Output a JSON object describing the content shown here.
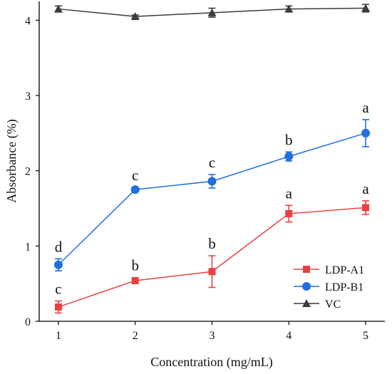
{
  "chart_data": {
    "type": "line",
    "xlabel": "Concentration (mg/mL)",
    "ylabel": "Absorbance (%)",
    "x": [
      1,
      2,
      3,
      4,
      5
    ],
    "xlim": [
      0.75,
      5.25
    ],
    "ylim": [
      0,
      4.25
    ],
    "xticks": [
      1,
      2,
      3,
      4,
      5
    ],
    "yticks": [
      0,
      1,
      2,
      3,
      4
    ],
    "grid": false,
    "legend_position": "bottom-right",
    "series": [
      {
        "name": "LDP-A1",
        "color": "#ea4040",
        "marker": "square",
        "values": [
          0.19,
          0.54,
          0.66,
          1.43,
          1.51
        ],
        "errors": [
          0.08,
          0.04,
          0.21,
          0.11,
          0.09
        ],
        "labels": [
          "c",
          "b",
          "b",
          "a",
          "a"
        ]
      },
      {
        "name": "LDP-B1",
        "color": "#1f6fe0",
        "marker": "circle",
        "values": [
          0.75,
          1.75,
          1.86,
          2.19,
          2.5
        ],
        "errors": [
          0.08,
          0.03,
          0.09,
          0.06,
          0.18
        ],
        "labels": [
          "d",
          "c",
          "c",
          "b",
          "a"
        ]
      },
      {
        "name": "VC",
        "color": "#3c3c3c",
        "marker": "triangle",
        "values": [
          4.15,
          4.05,
          4.1,
          4.15,
          4.16
        ],
        "errors": [
          0.04,
          0.02,
          0.06,
          0.04,
          0.05
        ],
        "labels": [
          "",
          "",
          "",
          "",
          ""
        ]
      }
    ]
  }
}
